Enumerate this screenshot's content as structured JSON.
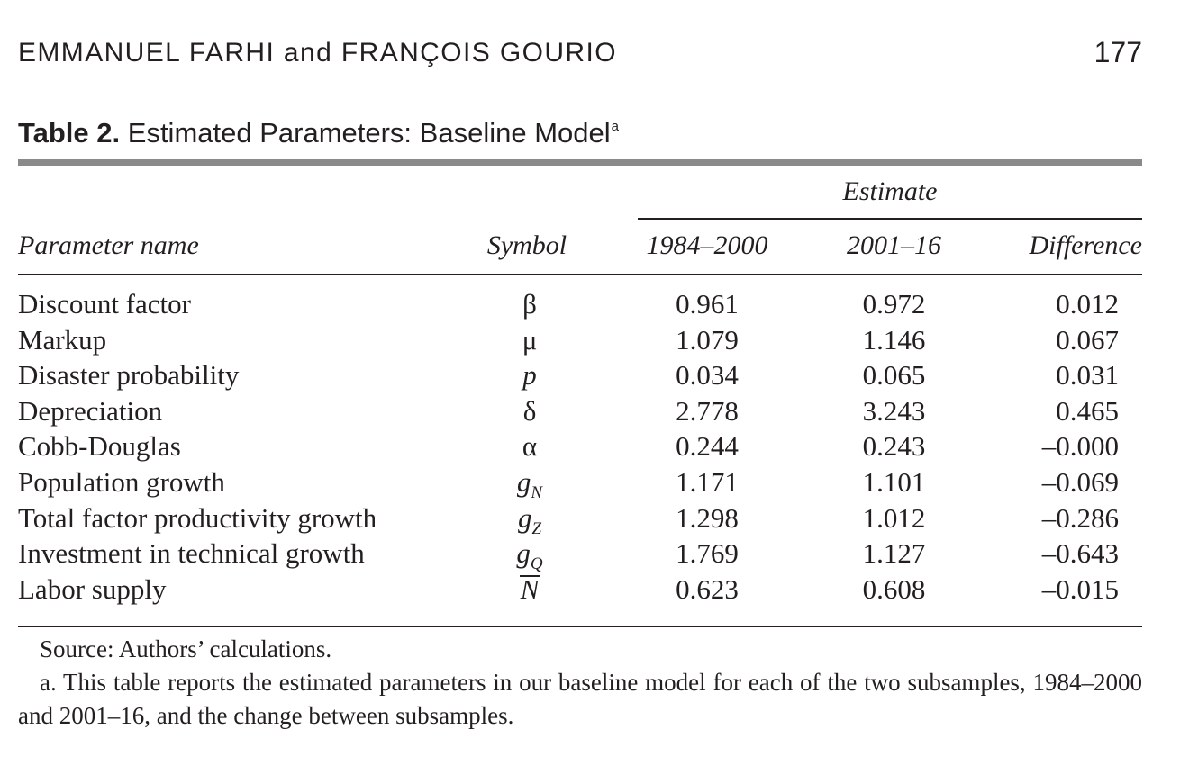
{
  "running_head": {
    "authors": "EMMANUEL FARHI and FRANÇOIS GOURIO",
    "page_number": "177"
  },
  "table": {
    "label": "Table 2.",
    "title": "Estimated Parameters: Baseline Model",
    "title_footnote_mark": "a",
    "spanner": "Estimate",
    "headers": {
      "name": "Parameter name",
      "symbol": "Symbol",
      "col1": "1984–2000",
      "col2": "2001–16",
      "col3": "Difference"
    },
    "rows": [
      {
        "name": "Discount factor",
        "symbol": "β",
        "symbol_sub": "",
        "col1": "0.961",
        "col2": "0.972",
        "col3": "0.012"
      },
      {
        "name": "Markup",
        "symbol": "μ",
        "symbol_sub": "",
        "col1": "1.079",
        "col2": "1.146",
        "col3": "0.067"
      },
      {
        "name": "Disaster probability",
        "symbol": "p",
        "symbol_sub": "",
        "col1": "0.034",
        "col2": "0.065",
        "col3": "0.031"
      },
      {
        "name": "Depreciation",
        "symbol": "δ",
        "symbol_sub": "",
        "col1": "2.778",
        "col2": "3.243",
        "col3": "0.465"
      },
      {
        "name": "Cobb-Douglas",
        "symbol": "α",
        "symbol_sub": "",
        "col1": "0.244",
        "col2": "0.243",
        "col3": "–0.000"
      },
      {
        "name": "Population growth",
        "symbol": "g",
        "symbol_sub": "N",
        "col1": "1.171",
        "col2": "1.101",
        "col3": "–0.069"
      },
      {
        "name": "Total factor productivity growth",
        "symbol": "g",
        "symbol_sub": "Z",
        "col1": "1.298",
        "col2": "1.012",
        "col3": "–0.286"
      },
      {
        "name": "Investment in technical growth",
        "symbol": "g",
        "symbol_sub": "Q",
        "col1": "1.769",
        "col2": "1.127",
        "col3": "–0.643"
      },
      {
        "name": "Labor supply",
        "symbol": "N",
        "symbol_sub": "",
        "col1": "0.623",
        "col2": "0.608",
        "col3": "–0.015"
      }
    ]
  },
  "notes": {
    "source": "Source: Authors’ calculations.",
    "footnote_a": "a. This table reports the estimated parameters in our baseline model for each of the two subsamples, 1984–2000 and 2001–16, and the change between subsamples."
  }
}
